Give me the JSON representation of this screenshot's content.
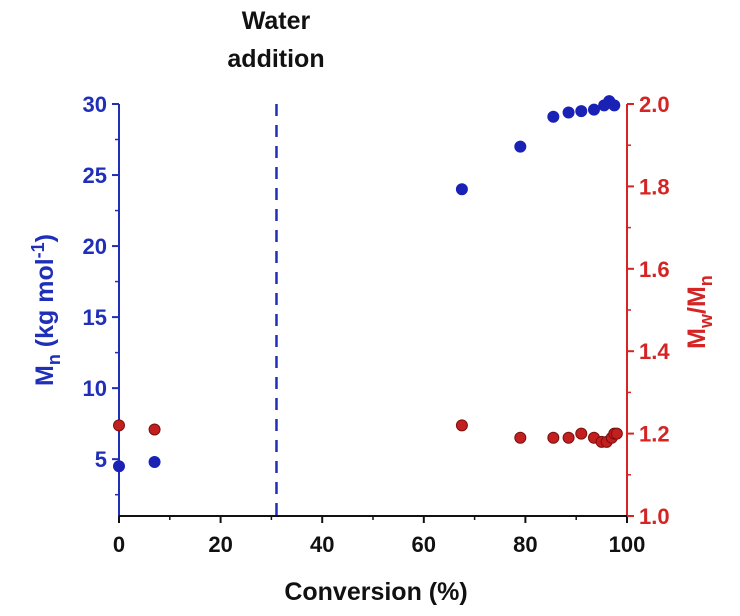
{
  "chart_data": {
    "type": "scatter",
    "annotation": {
      "line1": "Water",
      "line2": "addition",
      "x": 31
    },
    "xlabel": "Conversion (%)",
    "ylabel_left": {
      "main": "M",
      "sub": "n",
      "unit_pre": " (kg mol",
      "sup": "-1",
      "unit_post": ")"
    },
    "ylabel_right": {
      "a": "M",
      "a_sub": "w",
      "slash": "/M",
      "b_sub": "n"
    },
    "xlim": [
      0,
      100
    ],
    "ylim_left": [
      1,
      30
    ],
    "ylim_right": [
      1.0,
      2.0
    ],
    "x_ticks": [
      "0",
      "20",
      "40",
      "60",
      "80",
      "100"
    ],
    "y_left_ticks": [
      "5",
      "10",
      "15",
      "20",
      "25",
      "30"
    ],
    "y_right_ticks": [
      "1.0",
      "1.2",
      "1.4",
      "1.6",
      "1.8",
      "2.0"
    ],
    "colors": {
      "left": "#1f2fb8",
      "right": "#d42424",
      "point_left": "#1a22b5",
      "point_right": "#c41f1f",
      "point_right_edge": "#7a1010"
    },
    "series": [
      {
        "axis": "left",
        "x": [
          0,
          7,
          67.5,
          79,
          85.5,
          88.5,
          91,
          93.5,
          95.5,
          96.5,
          97.5
        ],
        "y": [
          4.5,
          4.8,
          24,
          27,
          29.1,
          29.4,
          29.5,
          29.6,
          29.9,
          30.2,
          29.9
        ]
      },
      {
        "axis": "right",
        "x": [
          0,
          7,
          67.5,
          79,
          85.5,
          88.5,
          91,
          93.5,
          95,
          96,
          97,
          97.5,
          98
        ],
        "y": [
          1.22,
          1.21,
          1.22,
          1.19,
          1.19,
          1.19,
          1.2,
          1.19,
          1.18,
          1.18,
          1.19,
          1.2,
          1.2
        ]
      }
    ]
  }
}
